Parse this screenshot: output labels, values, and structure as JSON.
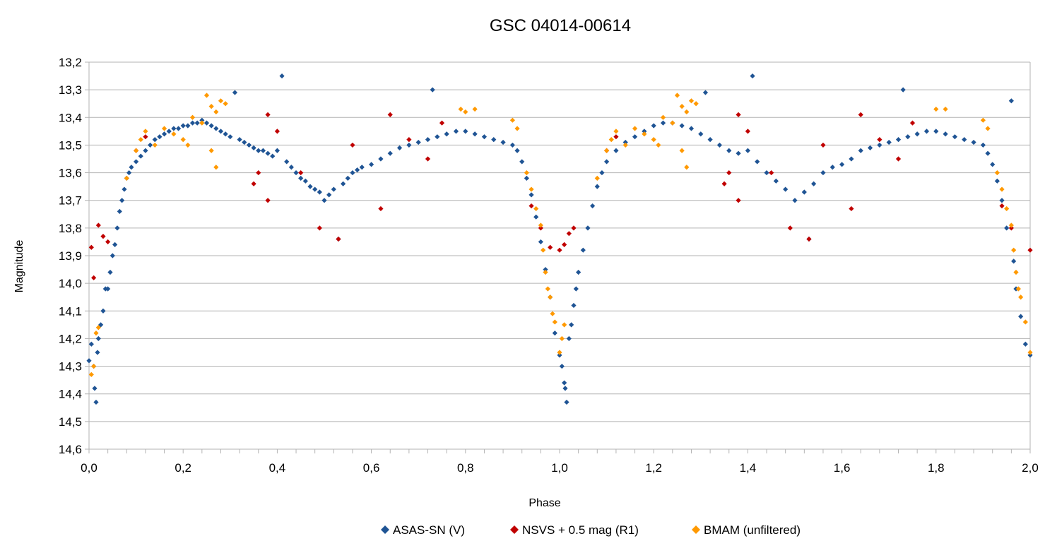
{
  "chart_data": {
    "type": "scatter",
    "title": "GSC 04014-00614",
    "xlabel": "Phase",
    "ylabel": "Magnitude",
    "xlim": [
      0,
      2
    ],
    "ylim": [
      13.2,
      14.6
    ],
    "y_inverted": true,
    "grid": "horizontal",
    "legend_position": "bottom",
    "xticks": [
      "0,0",
      "0,2",
      "0,4",
      "0,6",
      "0,8",
      "1,0",
      "1,2",
      "1,4",
      "1,6",
      "1,8",
      "2,0"
    ],
    "yticks": [
      "13,2",
      "13,3",
      "13,4",
      "13,5",
      "13,6",
      "13,7",
      "13,8",
      "13,9",
      "14,0",
      "14,1",
      "14,2",
      "14,3",
      "14,4",
      "14,5",
      "14,6"
    ],
    "series": [
      {
        "name": "ASAS-SN (V)",
        "color": "#1f5494",
        "marker": "diamond",
        "points": [
          [
            0.0,
            14.28
          ],
          [
            0.005,
            14.22
          ],
          [
            0.01,
            14.3
          ],
          [
            0.012,
            14.38
          ],
          [
            0.015,
            14.43
          ],
          [
            0.018,
            14.25
          ],
          [
            0.02,
            14.2
          ],
          [
            0.025,
            14.15
          ],
          [
            0.03,
            14.1
          ],
          [
            0.035,
            14.02
          ],
          [
            0.04,
            14.02
          ],
          [
            0.045,
            13.96
          ],
          [
            0.05,
            13.9
          ],
          [
            0.055,
            13.86
          ],
          [
            0.06,
            13.8
          ],
          [
            0.065,
            13.74
          ],
          [
            0.07,
            13.7
          ],
          [
            0.075,
            13.66
          ],
          [
            0.08,
            13.62
          ],
          [
            0.085,
            13.6
          ],
          [
            0.09,
            13.58
          ],
          [
            0.1,
            13.56
          ],
          [
            0.11,
            13.54
          ],
          [
            0.12,
            13.52
          ],
          [
            0.13,
            13.5
          ],
          [
            0.14,
            13.48
          ],
          [
            0.15,
            13.47
          ],
          [
            0.16,
            13.46
          ],
          [
            0.17,
            13.45
          ],
          [
            0.18,
            13.44
          ],
          [
            0.19,
            13.44
          ],
          [
            0.2,
            13.43
          ],
          [
            0.21,
            13.43
          ],
          [
            0.22,
            13.42
          ],
          [
            0.23,
            13.42
          ],
          [
            0.24,
            13.41
          ],
          [
            0.25,
            13.42
          ],
          [
            0.26,
            13.43
          ],
          [
            0.27,
            13.44
          ],
          [
            0.28,
            13.45
          ],
          [
            0.29,
            13.46
          ],
          [
            0.3,
            13.47
          ],
          [
            0.31,
            13.31
          ],
          [
            0.32,
            13.48
          ],
          [
            0.33,
            13.49
          ],
          [
            0.34,
            13.5
          ],
          [
            0.35,
            13.51
          ],
          [
            0.36,
            13.52
          ],
          [
            0.37,
            13.52
          ],
          [
            0.38,
            13.53
          ],
          [
            0.39,
            13.54
          ],
          [
            0.4,
            13.52
          ],
          [
            0.41,
            13.25
          ],
          [
            0.42,
            13.56
          ],
          [
            0.43,
            13.58
          ],
          [
            0.44,
            13.6
          ],
          [
            0.45,
            13.62
          ],
          [
            0.46,
            13.63
          ],
          [
            0.47,
            13.65
          ],
          [
            0.48,
            13.66
          ],
          [
            0.49,
            13.67
          ],
          [
            0.5,
            13.7
          ],
          [
            0.51,
            13.68
          ],
          [
            0.52,
            13.66
          ],
          [
            0.53,
            13.84
          ],
          [
            0.54,
            13.64
          ],
          [
            0.55,
            13.62
          ],
          [
            0.56,
            13.6
          ],
          [
            0.57,
            13.59
          ],
          [
            0.58,
            13.58
          ],
          [
            0.6,
            13.57
          ],
          [
            0.62,
            13.55
          ],
          [
            0.64,
            13.53
          ],
          [
            0.66,
            13.51
          ],
          [
            0.68,
            13.5
          ],
          [
            0.7,
            13.49
          ],
          [
            0.72,
            13.48
          ],
          [
            0.73,
            13.3
          ],
          [
            0.74,
            13.47
          ],
          [
            0.76,
            13.46
          ],
          [
            0.78,
            13.45
          ],
          [
            0.8,
            13.45
          ],
          [
            0.82,
            13.46
          ],
          [
            0.84,
            13.47
          ],
          [
            0.86,
            13.48
          ],
          [
            0.88,
            13.49
          ],
          [
            0.9,
            13.5
          ],
          [
            0.91,
            13.52
          ],
          [
            0.92,
            13.56
          ],
          [
            0.93,
            13.62
          ],
          [
            0.94,
            13.68
          ],
          [
            0.95,
            13.76
          ],
          [
            0.96,
            13.85
          ],
          [
            0.97,
            13.95
          ],
          [
            0.98,
            14.05
          ],
          [
            0.99,
            14.18
          ],
          [
            1.0,
            14.26
          ],
          [
            1.005,
            14.3
          ],
          [
            1.01,
            14.36
          ],
          [
            1.012,
            14.38
          ],
          [
            1.015,
            14.43
          ],
          [
            1.02,
            14.2
          ],
          [
            1.025,
            14.15
          ],
          [
            1.03,
            14.08
          ],
          [
            1.035,
            14.02
          ],
          [
            1.04,
            13.96
          ],
          [
            1.05,
            13.88
          ],
          [
            1.06,
            13.8
          ],
          [
            1.07,
            13.72
          ],
          [
            1.08,
            13.65
          ],
          [
            1.09,
            13.6
          ],
          [
            1.1,
            13.56
          ],
          [
            1.12,
            13.52
          ],
          [
            1.14,
            13.49
          ],
          [
            1.16,
            13.47
          ],
          [
            1.18,
            13.45
          ],
          [
            1.2,
            13.43
          ],
          [
            1.22,
            13.42
          ],
          [
            1.24,
            13.42
          ],
          [
            1.26,
            13.43
          ],
          [
            1.28,
            13.44
          ],
          [
            1.3,
            13.46
          ],
          [
            1.31,
            13.31
          ],
          [
            1.32,
            13.48
          ],
          [
            1.34,
            13.5
          ],
          [
            1.36,
            13.52
          ],
          [
            1.38,
            13.53
          ],
          [
            1.4,
            13.52
          ],
          [
            1.41,
            13.25
          ],
          [
            1.42,
            13.56
          ],
          [
            1.44,
            13.6
          ],
          [
            1.46,
            13.63
          ],
          [
            1.48,
            13.66
          ],
          [
            1.5,
            13.7
          ],
          [
            1.52,
            13.67
          ],
          [
            1.53,
            13.84
          ],
          [
            1.54,
            13.64
          ],
          [
            1.56,
            13.6
          ],
          [
            1.58,
            13.58
          ],
          [
            1.6,
            13.57
          ],
          [
            1.62,
            13.55
          ],
          [
            1.64,
            13.52
          ],
          [
            1.66,
            13.51
          ],
          [
            1.68,
            13.5
          ],
          [
            1.7,
            13.49
          ],
          [
            1.72,
            13.48
          ],
          [
            1.73,
            13.3
          ],
          [
            1.74,
            13.47
          ],
          [
            1.76,
            13.46
          ],
          [
            1.78,
            13.45
          ],
          [
            1.8,
            13.45
          ],
          [
            1.82,
            13.46
          ],
          [
            1.84,
            13.47
          ],
          [
            1.86,
            13.48
          ],
          [
            1.88,
            13.49
          ],
          [
            1.9,
            13.5
          ],
          [
            1.91,
            13.53
          ],
          [
            1.92,
            13.57
          ],
          [
            1.93,
            13.63
          ],
          [
            1.94,
            13.7
          ],
          [
            1.95,
            13.8
          ],
          [
            1.96,
            13.34
          ],
          [
            1.965,
            13.92
          ],
          [
            1.97,
            14.02
          ],
          [
            1.98,
            14.12
          ],
          [
            1.99,
            14.22
          ],
          [
            2.0,
            14.26
          ]
        ]
      },
      {
        "name": "NSVS + 0.5 mag (R1)",
        "color": "#c00000",
        "marker": "diamond",
        "points": [
          [
            0.005,
            13.87
          ],
          [
            0.01,
            13.98
          ],
          [
            0.02,
            13.79
          ],
          [
            0.03,
            13.83
          ],
          [
            0.04,
            13.85
          ],
          [
            0.1,
            13.52
          ],
          [
            0.12,
            13.47
          ],
          [
            0.35,
            13.64
          ],
          [
            0.36,
            13.6
          ],
          [
            0.38,
            13.39
          ],
          [
            0.38,
            13.7
          ],
          [
            0.4,
            13.45
          ],
          [
            0.45,
            13.6
          ],
          [
            0.49,
            13.8
          ],
          [
            0.53,
            13.84
          ],
          [
            0.56,
            13.5
          ],
          [
            0.62,
            13.73
          ],
          [
            0.64,
            13.39
          ],
          [
            0.68,
            13.48
          ],
          [
            0.72,
            13.55
          ],
          [
            0.75,
            13.42
          ],
          [
            0.94,
            13.72
          ],
          [
            0.96,
            13.8
          ],
          [
            0.98,
            13.87
          ],
          [
            1.0,
            13.88
          ],
          [
            1.01,
            13.86
          ],
          [
            1.02,
            13.82
          ],
          [
            1.03,
            13.8
          ],
          [
            1.1,
            13.52
          ],
          [
            1.12,
            13.47
          ],
          [
            1.35,
            13.64
          ],
          [
            1.36,
            13.6
          ],
          [
            1.38,
            13.39
          ],
          [
            1.38,
            13.7
          ],
          [
            1.4,
            13.45
          ],
          [
            1.45,
            13.6
          ],
          [
            1.49,
            13.8
          ],
          [
            1.53,
            13.84
          ],
          [
            1.56,
            13.5
          ],
          [
            1.62,
            13.73
          ],
          [
            1.64,
            13.39
          ],
          [
            1.68,
            13.48
          ],
          [
            1.72,
            13.55
          ],
          [
            1.75,
            13.42
          ],
          [
            1.94,
            13.72
          ],
          [
            1.96,
            13.8
          ],
          [
            2.0,
            13.88
          ]
        ]
      },
      {
        "name": "BMAM (unfiltered)",
        "color": "#ff9900",
        "marker": "diamond",
        "points": [
          [
            0.005,
            14.33
          ],
          [
            0.01,
            14.3
          ],
          [
            0.015,
            14.18
          ],
          [
            0.02,
            14.16
          ],
          [
            0.08,
            13.62
          ],
          [
            0.1,
            13.52
          ],
          [
            0.11,
            13.48
          ],
          [
            0.12,
            13.45
          ],
          [
            0.14,
            13.5
          ],
          [
            0.16,
            13.44
          ],
          [
            0.18,
            13.46
          ],
          [
            0.2,
            13.48
          ],
          [
            0.21,
            13.5
          ],
          [
            0.22,
            13.4
          ],
          [
            0.24,
            13.42
          ],
          [
            0.25,
            13.32
          ],
          [
            0.26,
            13.36
          ],
          [
            0.27,
            13.38
          ],
          [
            0.28,
            13.34
          ],
          [
            0.29,
            13.35
          ],
          [
            0.27,
            13.58
          ],
          [
            0.26,
            13.52
          ],
          [
            0.8,
            13.38
          ],
          [
            0.79,
            13.37
          ],
          [
            0.82,
            13.37
          ],
          [
            0.9,
            13.41
          ],
          [
            0.91,
            13.44
          ],
          [
            0.93,
            13.6
          ],
          [
            0.94,
            13.66
          ],
          [
            0.95,
            13.73
          ],
          [
            0.96,
            13.79
          ],
          [
            0.965,
            13.88
          ],
          [
            0.97,
            13.96
          ],
          [
            0.975,
            14.02
          ],
          [
            0.98,
            14.05
          ],
          [
            0.985,
            14.11
          ],
          [
            0.99,
            14.14
          ],
          [
            1.0,
            14.25
          ],
          [
            1.005,
            14.2
          ],
          [
            1.01,
            14.15
          ],
          [
            1.08,
            13.62
          ],
          [
            1.1,
            13.52
          ],
          [
            1.11,
            13.48
          ],
          [
            1.12,
            13.45
          ],
          [
            1.14,
            13.5
          ],
          [
            1.16,
            13.44
          ],
          [
            1.18,
            13.46
          ],
          [
            1.2,
            13.48
          ],
          [
            1.21,
            13.5
          ],
          [
            1.22,
            13.4
          ],
          [
            1.24,
            13.42
          ],
          [
            1.25,
            13.32
          ],
          [
            1.26,
            13.36
          ],
          [
            1.27,
            13.38
          ],
          [
            1.28,
            13.34
          ],
          [
            1.29,
            13.35
          ],
          [
            1.27,
            13.58
          ],
          [
            1.26,
            13.52
          ],
          [
            1.8,
            13.37
          ],
          [
            1.82,
            13.37
          ],
          [
            1.9,
            13.41
          ],
          [
            1.91,
            13.44
          ],
          [
            1.93,
            13.6
          ],
          [
            1.94,
            13.66
          ],
          [
            1.95,
            13.73
          ],
          [
            1.96,
            13.79
          ],
          [
            1.965,
            13.88
          ],
          [
            1.97,
            13.96
          ],
          [
            1.975,
            14.02
          ],
          [
            1.98,
            14.05
          ],
          [
            1.99,
            14.14
          ],
          [
            2.0,
            14.25
          ]
        ]
      }
    ]
  }
}
